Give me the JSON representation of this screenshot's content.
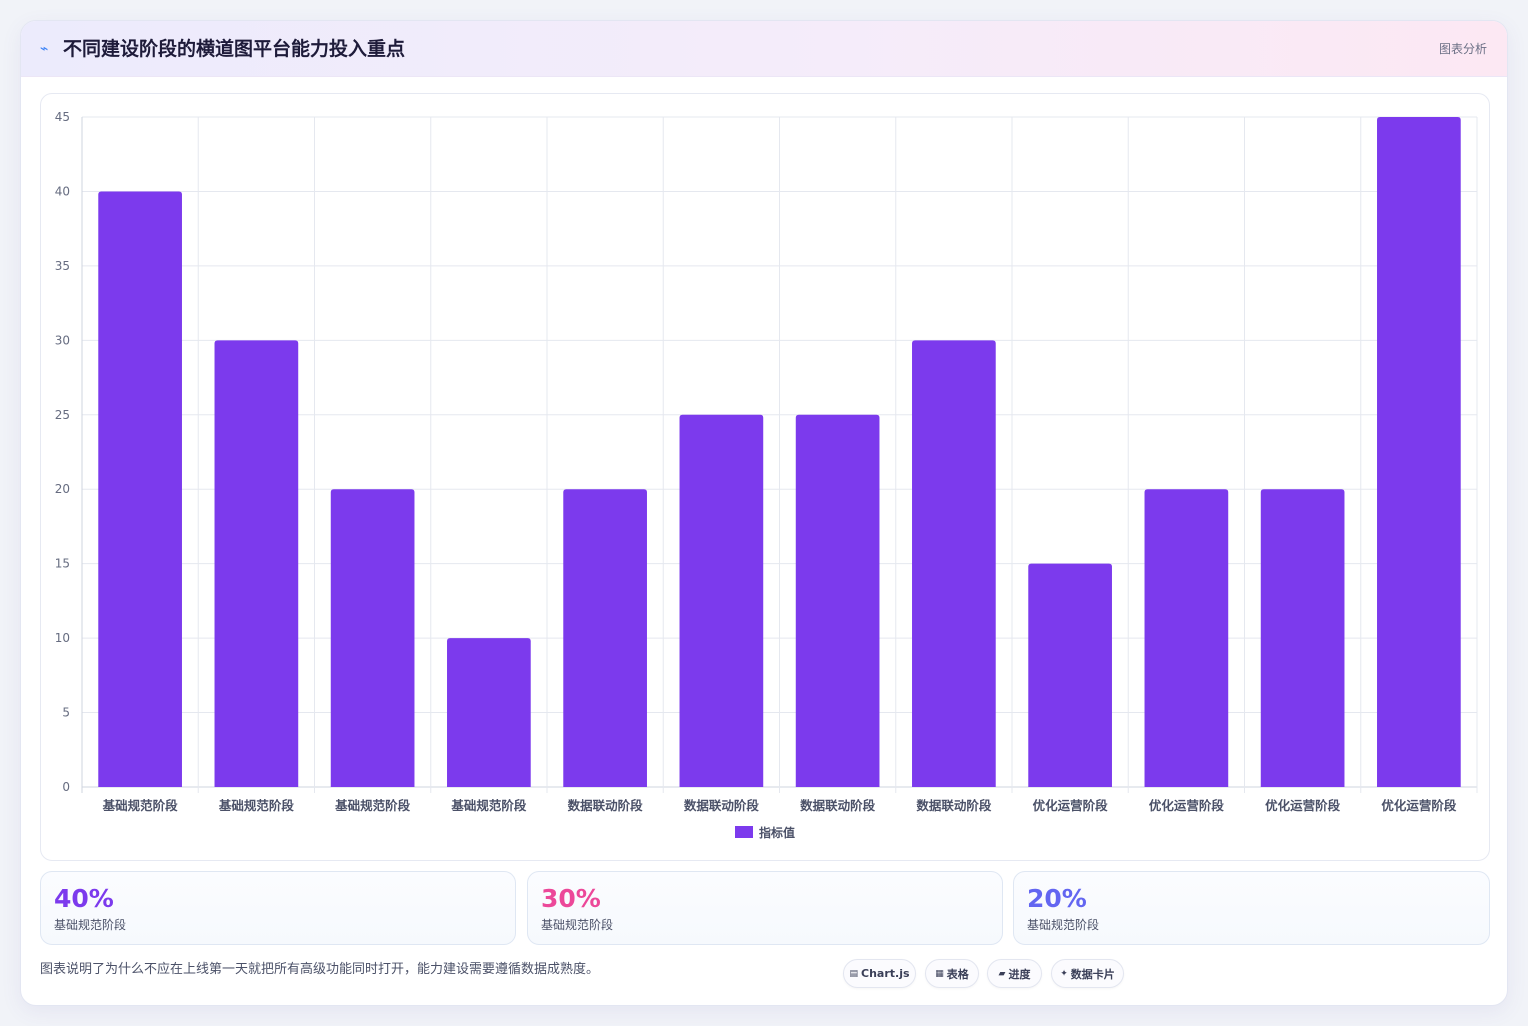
{
  "header": {
    "icon": "chart-icon",
    "title": "不同建设阶段的横道图平台能力投入重点",
    "tag": "图表分析"
  },
  "chart_data": {
    "type": "bar",
    "categories": [
      "基础规范阶段",
      "基础规范阶段",
      "基础规范阶段",
      "基础规范阶段",
      "数据联动阶段",
      "数据联动阶段",
      "数据联动阶段",
      "数据联动阶段",
      "优化运营阶段",
      "优化运营阶段",
      "优化运营阶段",
      "优化运营阶段"
    ],
    "series": [
      {
        "name": "指标值",
        "values": [
          40,
          30,
          20,
          10,
          20,
          25,
          25,
          30,
          15,
          20,
          20,
          45
        ],
        "color": "#7c3aed"
      }
    ],
    "title": "",
    "xlabel": "",
    "ylabel": "",
    "ylim": [
      0,
      45
    ],
    "yticks": [
      0,
      5,
      10,
      15,
      20,
      25,
      30,
      35,
      40,
      45
    ],
    "grid": true,
    "legend": "bottom"
  },
  "stats": [
    {
      "value": "40%",
      "label": "基础规范阶段",
      "color": "#7c3aed"
    },
    {
      "value": "30%",
      "label": "基础规范阶段",
      "color": "#ec4899"
    },
    {
      "value": "20%",
      "label": "基础规范阶段",
      "color": "#6366f1"
    }
  ],
  "footer": {
    "note": "图表说明了为什么不应在上线第一天就把所有高级功能同时打开，能力建设需要遵循数据成熟度。",
    "pills": [
      {
        "icon": "▤",
        "label": "Chart.js"
      },
      {
        "icon": "▦",
        "label": "表格"
      },
      {
        "icon": "▰",
        "label": "进度"
      },
      {
        "icon": "✦",
        "label": "数据卡片"
      }
    ]
  }
}
